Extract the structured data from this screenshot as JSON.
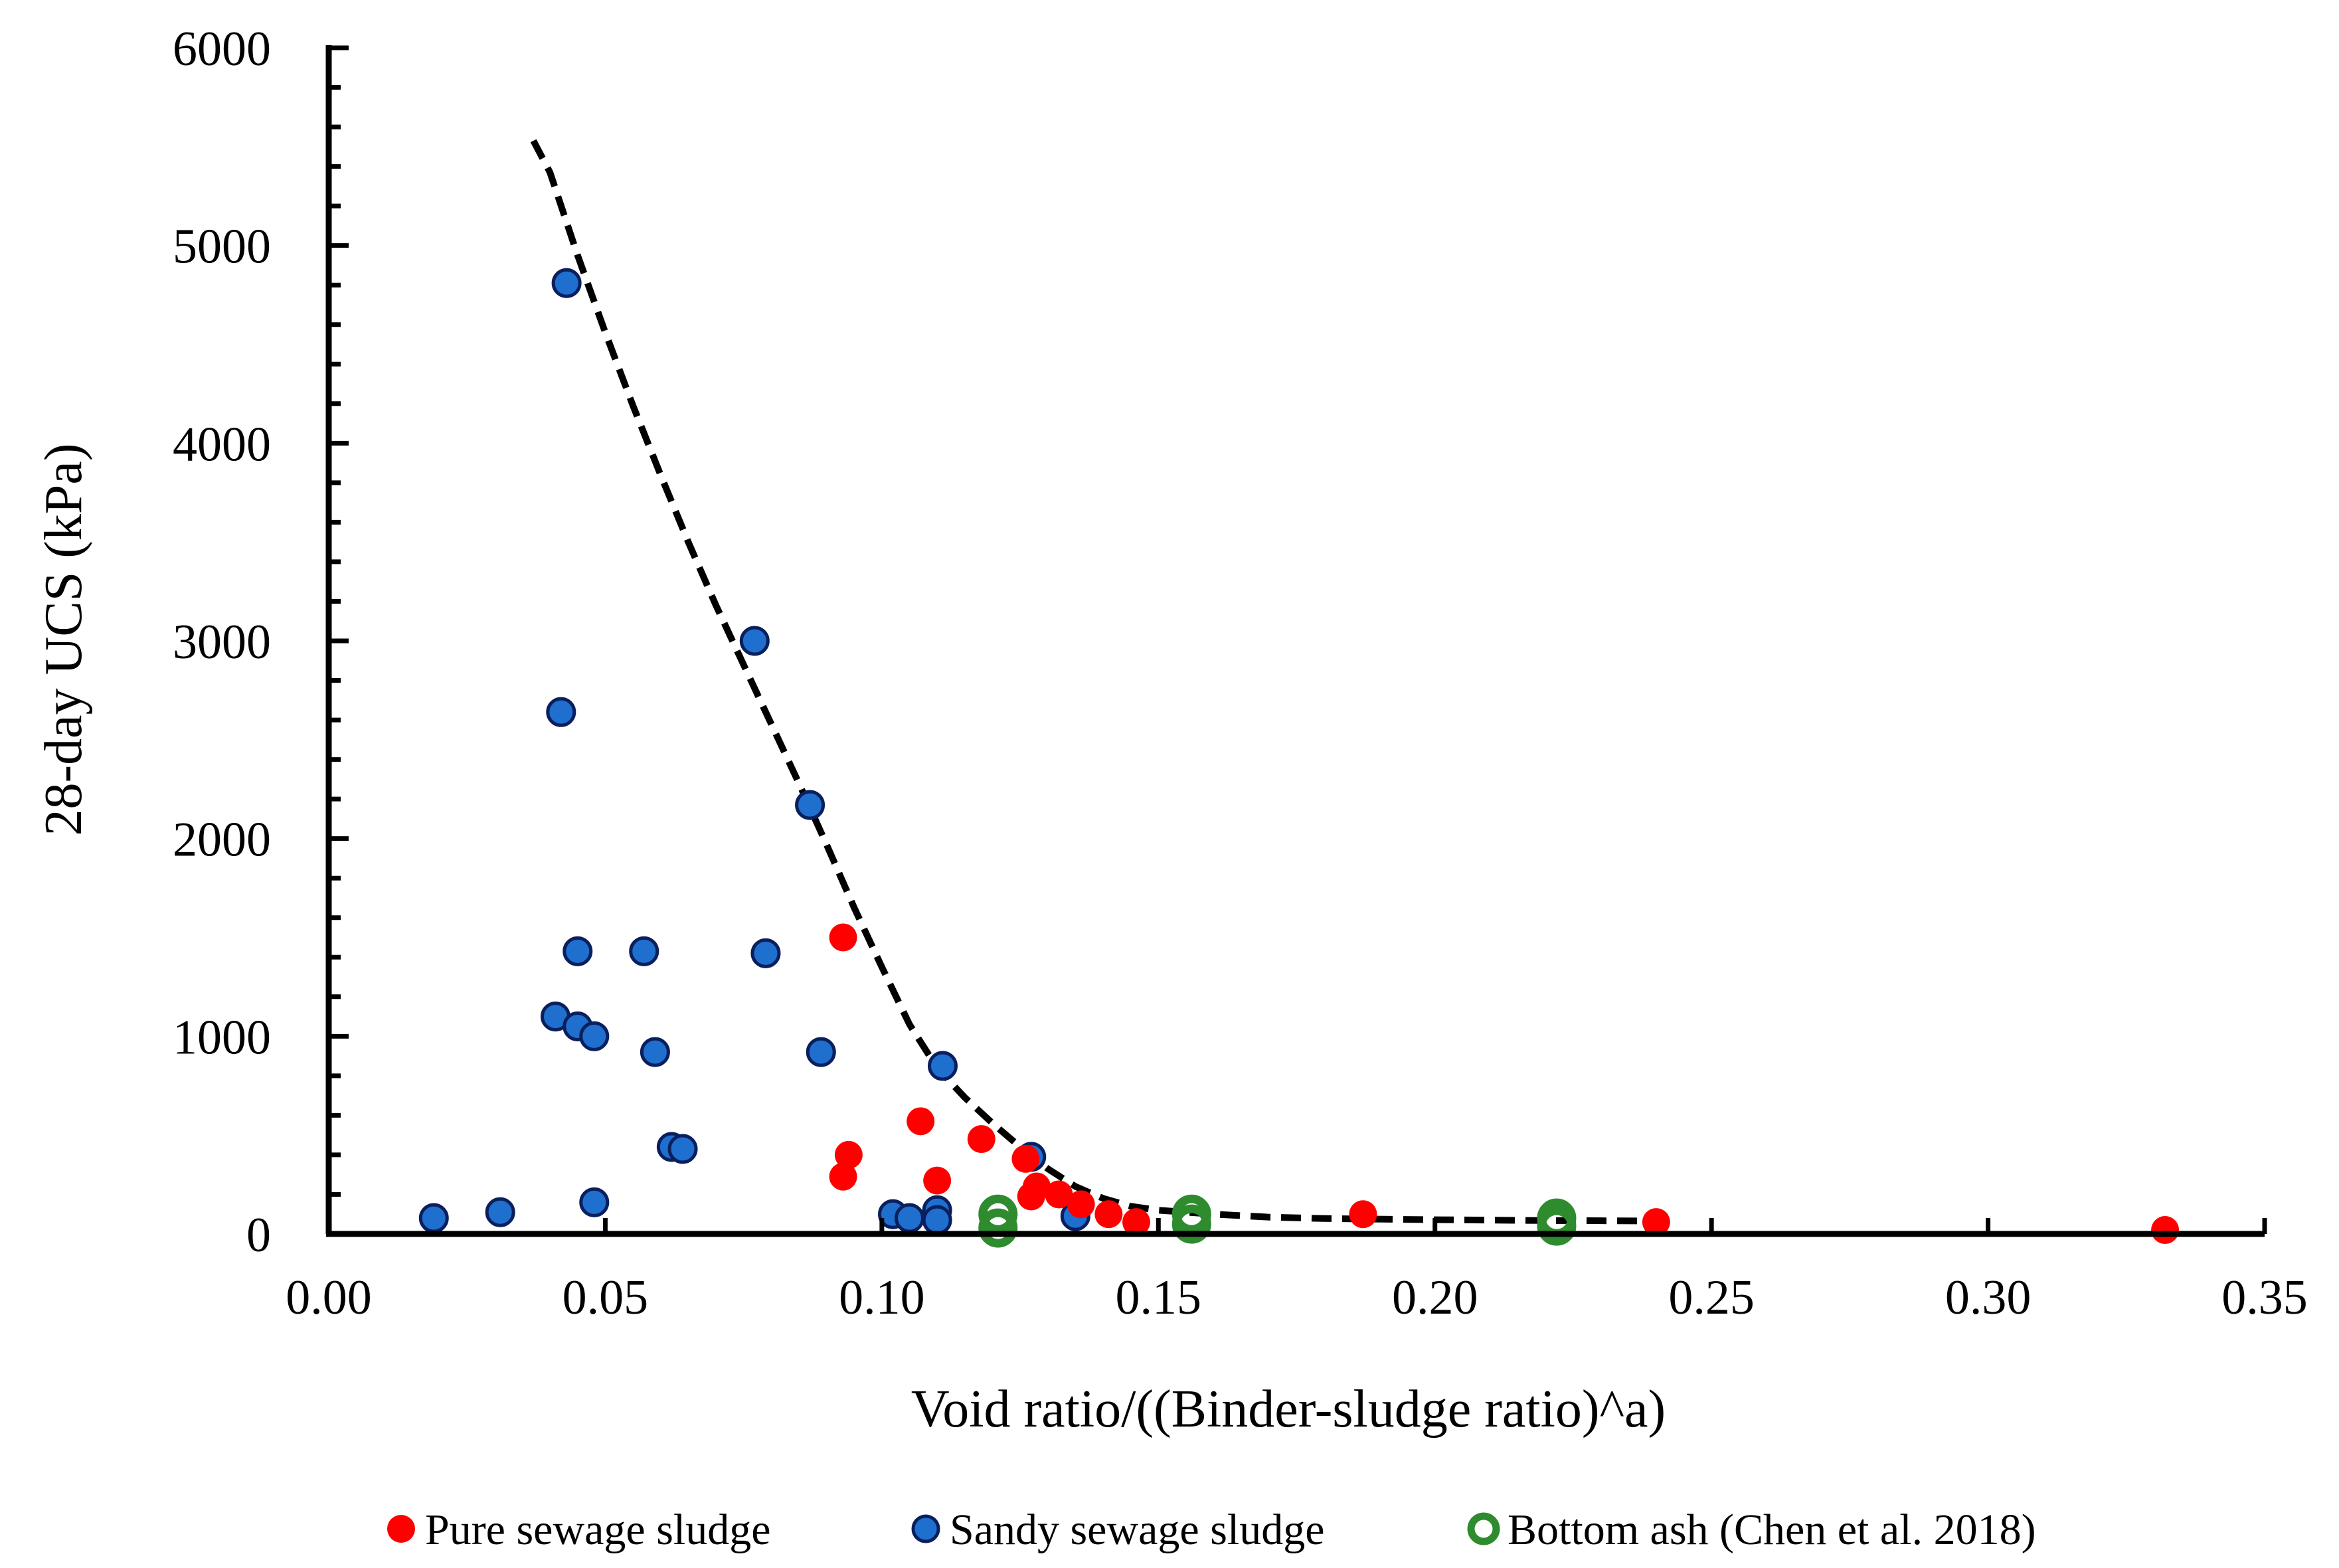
{
  "chart_data": {
    "type": "scatter",
    "title": "",
    "xlabel": "Void ratio/((Binder-sludge ratio)^a)",
    "ylabel": "28-day UCS (kPa)",
    "xlim": [
      0,
      0.35
    ],
    "ylim": [
      0,
      6000
    ],
    "x_ticks": [
      "0.00",
      "0.05",
      "0.10",
      "0.15",
      "0.20",
      "0.25",
      "0.30",
      "0.35"
    ],
    "y_ticks": [
      "0",
      "1000",
      "2000",
      "3000",
      "4000",
      "5000",
      "6000"
    ],
    "grid": false,
    "legend_position": "bottom",
    "series": [
      {
        "name": "Pure sewage sludge",
        "marker": "filled-circle",
        "color": "#ff0000",
        "points": [
          [
            0.093,
            1500
          ],
          [
            0.107,
            570
          ],
          [
            0.118,
            480
          ],
          [
            0.094,
            400
          ],
          [
            0.093,
            290
          ],
          [
            0.11,
            270
          ],
          [
            0.126,
            380
          ],
          [
            0.128,
            240
          ],
          [
            0.127,
            190
          ],
          [
            0.132,
            200
          ],
          [
            0.136,
            150
          ],
          [
            0.141,
            100
          ],
          [
            0.146,
            60
          ],
          [
            0.187,
            100
          ],
          [
            0.24,
            60
          ],
          [
            0.332,
            20
          ]
        ]
      },
      {
        "name": "Sandy sewage sludge",
        "marker": "filled-circle-outlined",
        "color": "#1f6fcf",
        "edge_color": "#0a1f5c",
        "points": [
          [
            0.043,
            4810
          ],
          [
            0.077,
            3000
          ],
          [
            0.042,
            2640
          ],
          [
            0.087,
            2170
          ],
          [
            0.045,
            1430
          ],
          [
            0.057,
            1430
          ],
          [
            0.079,
            1420
          ],
          [
            0.041,
            1100
          ],
          [
            0.045,
            1050
          ],
          [
            0.048,
            1000
          ],
          [
            0.059,
            920
          ],
          [
            0.089,
            920
          ],
          [
            0.111,
            850
          ],
          [
            0.062,
            440
          ],
          [
            0.064,
            430
          ],
          [
            0.127,
            390
          ],
          [
            0.048,
            160
          ],
          [
            0.019,
            80
          ],
          [
            0.031,
            110
          ],
          [
            0.102,
            100
          ],
          [
            0.105,
            80
          ],
          [
            0.11,
            120
          ],
          [
            0.11,
            70
          ],
          [
            0.135,
            90
          ]
        ]
      },
      {
        "name": "Bottom ash (Chen et al. 2018)",
        "marker": "hollow-circle",
        "color": "#2e8b2e",
        "points": [
          [
            0.121,
            100
          ],
          [
            0.121,
            30
          ],
          [
            0.156,
            100
          ],
          [
            0.156,
            50
          ],
          [
            0.222,
            80
          ],
          [
            0.222,
            40
          ]
        ]
      },
      {
        "name": "Fitted curve",
        "marker": "dashed-line",
        "color": "#000000",
        "show_in_legend": false,
        "points": [
          [
            0.037,
            5530
          ],
          [
            0.04,
            5370
          ],
          [
            0.045,
            4950
          ],
          [
            0.05,
            4560
          ],
          [
            0.055,
            4190
          ],
          [
            0.06,
            3840
          ],
          [
            0.065,
            3500
          ],
          [
            0.07,
            3180
          ],
          [
            0.075,
            2880
          ],
          [
            0.08,
            2580
          ],
          [
            0.085,
            2280
          ],
          [
            0.09,
            1970
          ],
          [
            0.095,
            1650
          ],
          [
            0.1,
            1350
          ],
          [
            0.105,
            1060
          ],
          [
            0.11,
            840
          ],
          [
            0.115,
            690
          ],
          [
            0.12,
            560
          ],
          [
            0.125,
            440
          ],
          [
            0.13,
            330
          ],
          [
            0.135,
            240
          ],
          [
            0.14,
            180
          ],
          [
            0.145,
            140
          ],
          [
            0.15,
            120
          ],
          [
            0.16,
            100
          ],
          [
            0.17,
            85
          ],
          [
            0.18,
            78
          ],
          [
            0.2,
            72
          ],
          [
            0.22,
            68
          ],
          [
            0.237,
            66
          ]
        ]
      }
    ]
  }
}
